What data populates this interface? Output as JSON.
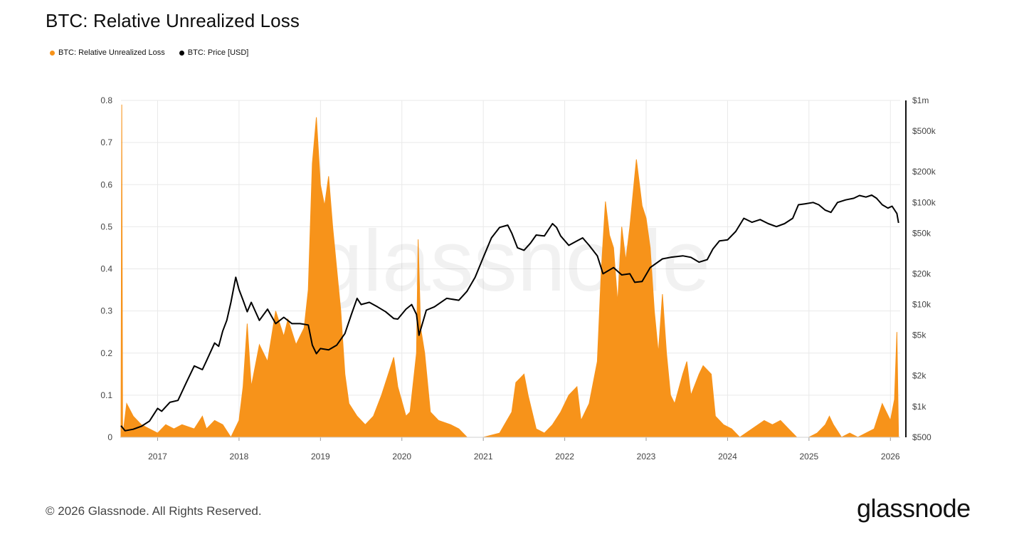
{
  "header": {
    "title": "BTC: Relative Unrealized Loss"
  },
  "footer": {
    "copyright": "© 2026 Glassnode. All Rights Reserved.",
    "brand": "glassnode"
  },
  "watermark": "glassnode",
  "colors": {
    "loss": "#f7931a",
    "price": "#000000",
    "grid": "#e9e9e9",
    "axis_text": "#444444"
  },
  "chart_data": {
    "type": "area",
    "title": "BTC: Relative Unrealized Loss",
    "legend_position": "top-left",
    "grid": true,
    "x_ticks": [
      "2017",
      "2018",
      "2019",
      "2020",
      "2021",
      "2022",
      "2023",
      "2024",
      "2025",
      "2026"
    ],
    "x_range": [
      2016.55,
      2026.12
    ],
    "left_axis": {
      "ticks": [
        "0",
        "0.1",
        "0.2",
        "0.3",
        "0.4",
        "0.5",
        "0.6",
        "0.7",
        "0.8"
      ],
      "ylim": [
        0,
        0.8
      ]
    },
    "right_axis": {
      "scale": "log",
      "ticks": [
        "$500",
        "$1k",
        "$2k",
        "$5k",
        "$10k",
        "$20k",
        "$50k",
        "$100k",
        "$200k",
        "$500k",
        "$1m"
      ],
      "ylim": [
        500,
        1000000
      ]
    },
    "series": [
      {
        "name": "BTC: Relative Unrealized Loss",
        "axis": "left",
        "points": [
          [
            2016.55,
            0.0
          ],
          [
            2016.56,
            0.79
          ],
          [
            2016.57,
            0.0
          ],
          [
            2016.62,
            0.08
          ],
          [
            2016.7,
            0.05
          ],
          [
            2016.8,
            0.03
          ],
          [
            2016.9,
            0.02
          ],
          [
            2017.0,
            0.01
          ],
          [
            2017.1,
            0.03
          ],
          [
            2017.2,
            0.02
          ],
          [
            2017.3,
            0.03
          ],
          [
            2017.45,
            0.02
          ],
          [
            2017.55,
            0.05
          ],
          [
            2017.6,
            0.02
          ],
          [
            2017.7,
            0.04
          ],
          [
            2017.8,
            0.03
          ],
          [
            2017.9,
            0.0
          ],
          [
            2018.0,
            0.04
          ],
          [
            2018.05,
            0.12
          ],
          [
            2018.1,
            0.27
          ],
          [
            2018.15,
            0.12
          ],
          [
            2018.25,
            0.22
          ],
          [
            2018.35,
            0.18
          ],
          [
            2018.45,
            0.3
          ],
          [
            2018.55,
            0.24
          ],
          [
            2018.6,
            0.28
          ],
          [
            2018.7,
            0.22
          ],
          [
            2018.8,
            0.26
          ],
          [
            2018.85,
            0.35
          ],
          [
            2018.9,
            0.65
          ],
          [
            2018.95,
            0.76
          ],
          [
            2019.0,
            0.6
          ],
          [
            2019.05,
            0.55
          ],
          [
            2019.1,
            0.62
          ],
          [
            2019.15,
            0.5
          ],
          [
            2019.2,
            0.4
          ],
          [
            2019.25,
            0.3
          ],
          [
            2019.3,
            0.15
          ],
          [
            2019.35,
            0.08
          ],
          [
            2019.45,
            0.05
          ],
          [
            2019.55,
            0.03
          ],
          [
            2019.65,
            0.05
          ],
          [
            2019.75,
            0.1
          ],
          [
            2019.85,
            0.16
          ],
          [
            2019.9,
            0.19
          ],
          [
            2019.95,
            0.12
          ],
          [
            2020.05,
            0.05
          ],
          [
            2020.1,
            0.06
          ],
          [
            2020.18,
            0.2
          ],
          [
            2020.2,
            0.47
          ],
          [
            2020.23,
            0.26
          ],
          [
            2020.28,
            0.2
          ],
          [
            2020.35,
            0.06
          ],
          [
            2020.45,
            0.04
          ],
          [
            2020.6,
            0.03
          ],
          [
            2020.7,
            0.02
          ],
          [
            2020.8,
            0.0
          ],
          [
            2021.0,
            0.0
          ],
          [
            2021.2,
            0.01
          ],
          [
            2021.35,
            0.06
          ],
          [
            2021.4,
            0.13
          ],
          [
            2021.45,
            0.14
          ],
          [
            2021.5,
            0.15
          ],
          [
            2021.55,
            0.1
          ],
          [
            2021.65,
            0.02
          ],
          [
            2021.75,
            0.01
          ],
          [
            2021.85,
            0.03
          ],
          [
            2021.95,
            0.06
          ],
          [
            2022.05,
            0.1
          ],
          [
            2022.15,
            0.12
          ],
          [
            2022.2,
            0.04
          ],
          [
            2022.3,
            0.08
          ],
          [
            2022.4,
            0.18
          ],
          [
            2022.45,
            0.4
          ],
          [
            2022.5,
            0.56
          ],
          [
            2022.55,
            0.48
          ],
          [
            2022.6,
            0.45
          ],
          [
            2022.65,
            0.32
          ],
          [
            2022.7,
            0.5
          ],
          [
            2022.75,
            0.42
          ],
          [
            2022.8,
            0.5
          ],
          [
            2022.85,
            0.6
          ],
          [
            2022.88,
            0.66
          ],
          [
            2022.95,
            0.55
          ],
          [
            2023.0,
            0.52
          ],
          [
            2023.05,
            0.45
          ],
          [
            2023.1,
            0.3
          ],
          [
            2023.15,
            0.2
          ],
          [
            2023.2,
            0.34
          ],
          [
            2023.25,
            0.2
          ],
          [
            2023.3,
            0.1
          ],
          [
            2023.35,
            0.08
          ],
          [
            2023.45,
            0.15
          ],
          [
            2023.5,
            0.18
          ],
          [
            2023.55,
            0.1
          ],
          [
            2023.65,
            0.15
          ],
          [
            2023.7,
            0.17
          ],
          [
            2023.8,
            0.15
          ],
          [
            2023.85,
            0.05
          ],
          [
            2023.95,
            0.03
          ],
          [
            2024.05,
            0.02
          ],
          [
            2024.15,
            0.0
          ],
          [
            2024.3,
            0.02
          ],
          [
            2024.45,
            0.04
          ],
          [
            2024.55,
            0.03
          ],
          [
            2024.65,
            0.04
          ],
          [
            2024.75,
            0.02
          ],
          [
            2024.85,
            0.0
          ],
          [
            2025.0,
            0.0
          ],
          [
            2025.1,
            0.01
          ],
          [
            2025.2,
            0.03
          ],
          [
            2025.25,
            0.05
          ],
          [
            2025.3,
            0.03
          ],
          [
            2025.4,
            0.0
          ],
          [
            2025.5,
            0.01
          ],
          [
            2025.6,
            0.0
          ],
          [
            2025.7,
            0.01
          ],
          [
            2025.8,
            0.02
          ],
          [
            2025.9,
            0.08
          ],
          [
            2025.95,
            0.06
          ],
          [
            2026.0,
            0.04
          ],
          [
            2026.05,
            0.09
          ],
          [
            2026.08,
            0.25
          ],
          [
            2026.1,
            0.0
          ]
        ]
      },
      {
        "name": "BTC: Price [USD]",
        "axis": "right",
        "points": [
          [
            2016.55,
            650
          ],
          [
            2016.6,
            580
          ],
          [
            2016.7,
            600
          ],
          [
            2016.8,
            640
          ],
          [
            2016.9,
            720
          ],
          [
            2017.0,
            960
          ],
          [
            2017.05,
            900
          ],
          [
            2017.15,
            1100
          ],
          [
            2017.25,
            1150
          ],
          [
            2017.35,
            1700
          ],
          [
            2017.45,
            2500
          ],
          [
            2017.55,
            2300
          ],
          [
            2017.6,
            2800
          ],
          [
            2017.7,
            4200
          ],
          [
            2017.75,
            3900
          ],
          [
            2017.8,
            5500
          ],
          [
            2017.85,
            7000
          ],
          [
            2017.9,
            10500
          ],
          [
            2017.96,
            18500
          ],
          [
            2018.0,
            14000
          ],
          [
            2018.05,
            11000
          ],
          [
            2018.1,
            8500
          ],
          [
            2018.15,
            10500
          ],
          [
            2018.25,
            7000
          ],
          [
            2018.35,
            9000
          ],
          [
            2018.45,
            6500
          ],
          [
            2018.55,
            7500
          ],
          [
            2018.65,
            6500
          ],
          [
            2018.75,
            6500
          ],
          [
            2018.85,
            6300
          ],
          [
            2018.9,
            4000
          ],
          [
            2018.95,
            3300
          ],
          [
            2019.0,
            3700
          ],
          [
            2019.1,
            3600
          ],
          [
            2019.2,
            4000
          ],
          [
            2019.3,
            5200
          ],
          [
            2019.38,
            8000
          ],
          [
            2019.45,
            11500
          ],
          [
            2019.5,
            10000
          ],
          [
            2019.6,
            10500
          ],
          [
            2019.7,
            9500
          ],
          [
            2019.8,
            8500
          ],
          [
            2019.9,
            7300
          ],
          [
            2019.95,
            7200
          ],
          [
            2020.05,
            9000
          ],
          [
            2020.12,
            10000
          ],
          [
            2020.18,
            8000
          ],
          [
            2020.21,
            5000
          ],
          [
            2020.3,
            8800
          ],
          [
            2020.4,
            9500
          ],
          [
            2020.55,
            11500
          ],
          [
            2020.7,
            11000
          ],
          [
            2020.8,
            13500
          ],
          [
            2020.9,
            18500
          ],
          [
            2021.0,
            29000
          ],
          [
            2021.1,
            45000
          ],
          [
            2021.2,
            57000
          ],
          [
            2021.3,
            60000
          ],
          [
            2021.35,
            50000
          ],
          [
            2021.42,
            36000
          ],
          [
            2021.5,
            34000
          ],
          [
            2021.58,
            40000
          ],
          [
            2021.65,
            48000
          ],
          [
            2021.75,
            47000
          ],
          [
            2021.85,
            62000
          ],
          [
            2021.9,
            57000
          ],
          [
            2021.95,
            47000
          ],
          [
            2022.05,
            38000
          ],
          [
            2022.15,
            42000
          ],
          [
            2022.22,
            45000
          ],
          [
            2022.3,
            38000
          ],
          [
            2022.4,
            30000
          ],
          [
            2022.47,
            20000
          ],
          [
            2022.6,
            23000
          ],
          [
            2022.7,
            19500
          ],
          [
            2022.8,
            20000
          ],
          [
            2022.86,
            16500
          ],
          [
            2022.95,
            16800
          ],
          [
            2023.05,
            23000
          ],
          [
            2023.2,
            28000
          ],
          [
            2023.3,
            29000
          ],
          [
            2023.45,
            30000
          ],
          [
            2023.55,
            29000
          ],
          [
            2023.65,
            26000
          ],
          [
            2023.75,
            27500
          ],
          [
            2023.82,
            35000
          ],
          [
            2023.9,
            42000
          ],
          [
            2024.0,
            43000
          ],
          [
            2024.1,
            52000
          ],
          [
            2024.2,
            70000
          ],
          [
            2024.3,
            64000
          ],
          [
            2024.4,
            68000
          ],
          [
            2024.5,
            62000
          ],
          [
            2024.6,
            58000
          ],
          [
            2024.7,
            62000
          ],
          [
            2024.8,
            70000
          ],
          [
            2024.87,
            95000
          ],
          [
            2024.95,
            97000
          ],
          [
            2025.05,
            100000
          ],
          [
            2025.12,
            95000
          ],
          [
            2025.2,
            84000
          ],
          [
            2025.27,
            80000
          ],
          [
            2025.35,
            100000
          ],
          [
            2025.45,
            106000
          ],
          [
            2025.55,
            110000
          ],
          [
            2025.62,
            117000
          ],
          [
            2025.7,
            113000
          ],
          [
            2025.77,
            118000
          ],
          [
            2025.83,
            110000
          ],
          [
            2025.9,
            95000
          ],
          [
            2025.97,
            88000
          ],
          [
            2026.02,
            92000
          ],
          [
            2026.08,
            78000
          ],
          [
            2026.1,
            63000
          ]
        ]
      }
    ]
  }
}
